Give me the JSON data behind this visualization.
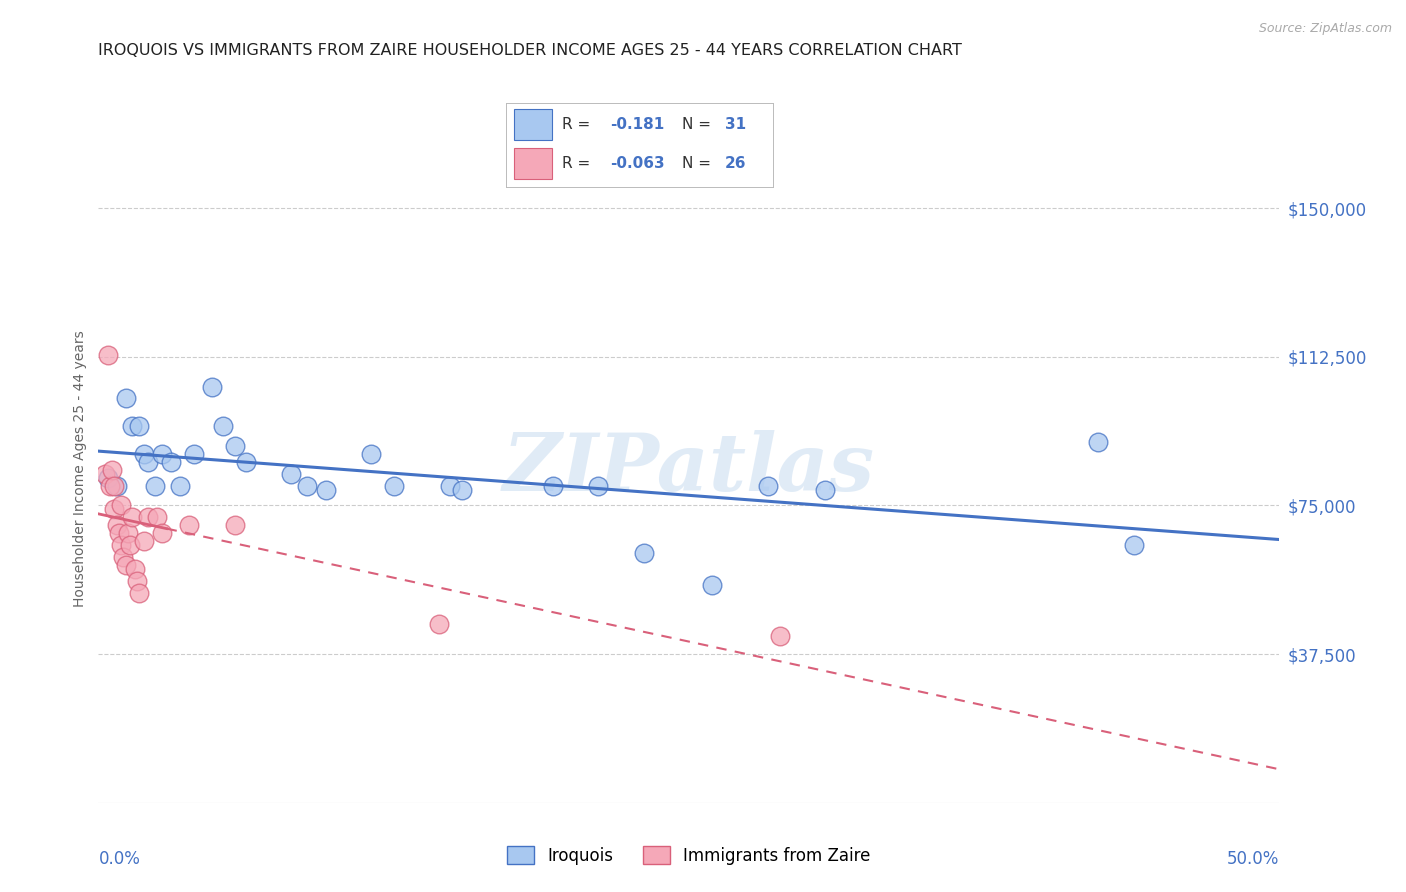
{
  "title": "IROQUOIS VS IMMIGRANTS FROM ZAIRE HOUSEHOLDER INCOME AGES 25 - 44 YEARS CORRELATION CHART",
  "source": "Source: ZipAtlas.com",
  "ylabel": "Householder Income Ages 25 - 44 years",
  "ytick_labels": [
    "$37,500",
    "$75,000",
    "$112,500",
    "$150,000"
  ],
  "ytick_values": [
    37500,
    75000,
    112500,
    150000
  ],
  "ylim": [
    0,
    168750
  ],
  "xlim": [
    0.0,
    0.52
  ],
  "watermark": "ZIPatlas",
  "iroquois_color": "#a8c8f0",
  "iroquois_edge_color": "#4472c4",
  "iroquois_line_color": "#4472c4",
  "zaire_color": "#f5a8b8",
  "zaire_edge_color": "#d9607a",
  "zaire_line_color": "#d9607a",
  "background_color": "#ffffff",
  "grid_color": "#cccccc",
  "title_color": "#222222",
  "axis_tick_color": "#4472c4",
  "legend_text_color": "#333333",
  "legend_val_color": "#4472c4",
  "iroquois_x": [
    0.004,
    0.008,
    0.012,
    0.015,
    0.018,
    0.02,
    0.022,
    0.025,
    0.028,
    0.032,
    0.036,
    0.042,
    0.05,
    0.055,
    0.06,
    0.065,
    0.085,
    0.092,
    0.1,
    0.12,
    0.13,
    0.155,
    0.16,
    0.2,
    0.22,
    0.24,
    0.27,
    0.295,
    0.32,
    0.44,
    0.456
  ],
  "iroquois_y": [
    82000,
    80000,
    102000,
    95000,
    95000,
    88000,
    86000,
    80000,
    88000,
    86000,
    80000,
    88000,
    105000,
    95000,
    90000,
    86000,
    83000,
    80000,
    79000,
    88000,
    80000,
    80000,
    79000,
    80000,
    80000,
    63000,
    55000,
    80000,
    79000,
    91000,
    65000
  ],
  "zaire_x": [
    0.003,
    0.004,
    0.005,
    0.006,
    0.007,
    0.007,
    0.008,
    0.009,
    0.01,
    0.01,
    0.011,
    0.012,
    0.013,
    0.014,
    0.015,
    0.016,
    0.017,
    0.018,
    0.02,
    0.022,
    0.026,
    0.028,
    0.04,
    0.06,
    0.15,
    0.3
  ],
  "zaire_y": [
    83000,
    113000,
    80000,
    84000,
    80000,
    74000,
    70000,
    68000,
    75000,
    65000,
    62000,
    60000,
    68000,
    65000,
    72000,
    59000,
    56000,
    53000,
    66000,
    72000,
    72000,
    68000,
    70000,
    70000,
    45000,
    42000
  ]
}
